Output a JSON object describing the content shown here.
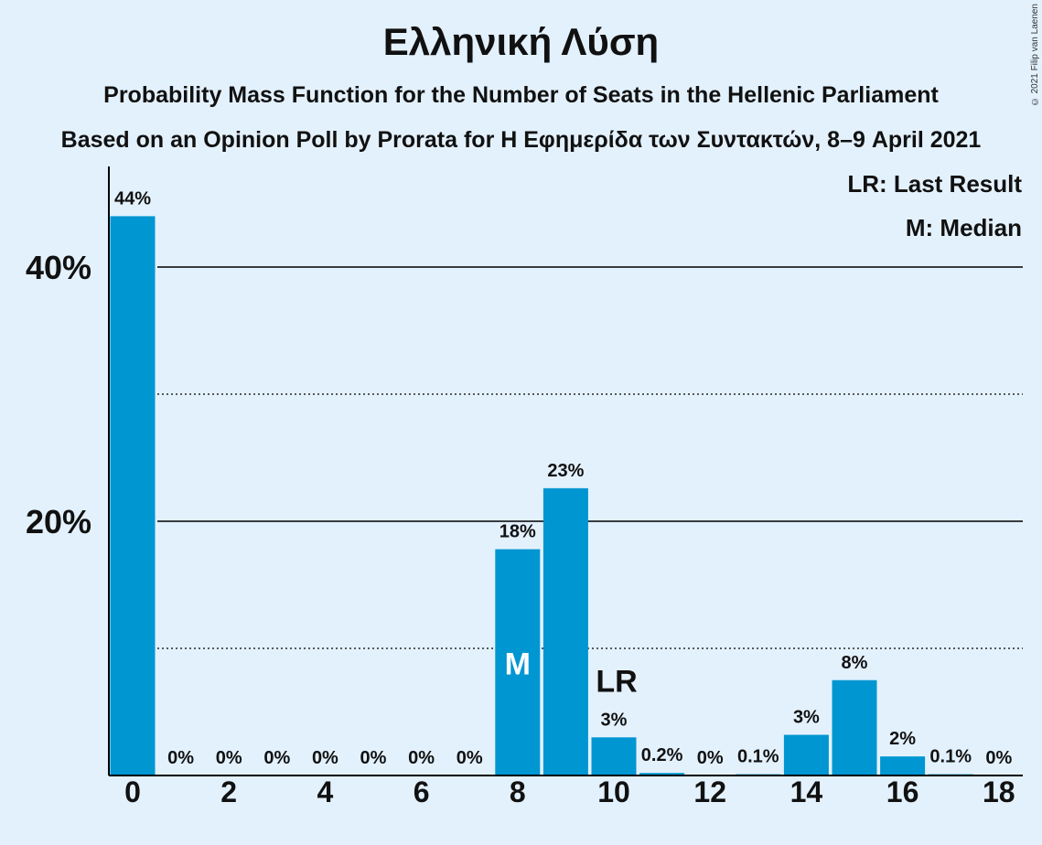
{
  "header": {
    "title": "Ελληνική Λύση",
    "subtitle1": "Probability Mass Function for the Number of Seats in the Hellenic Parliament",
    "subtitle2": "Based on an Opinion Poll by Prorata for Η Εφημερίδα των Συντακτών, 8–9 April 2021",
    "copyright": "© 2021 Filip van Laenen"
  },
  "legend": {
    "last_result": "LR: Last Result",
    "median": "M: Median"
  },
  "colors": {
    "background": "#e3f1fd",
    "bar": "#0096d2"
  },
  "chart_data": {
    "type": "bar",
    "x": [
      0,
      1,
      2,
      3,
      4,
      5,
      6,
      7,
      8,
      9,
      10,
      11,
      12,
      13,
      14,
      15,
      16,
      17,
      18
    ],
    "values": [
      44,
      0,
      0,
      0,
      0,
      0,
      0,
      0,
      17.8,
      22.6,
      3,
      0.2,
      0,
      0.1,
      3.2,
      7.5,
      1.5,
      0.1,
      0
    ],
    "value_labels": [
      "44%",
      "0%",
      "0%",
      "0%",
      "0%",
      "0%",
      "0%",
      "0%",
      "18%",
      "23%",
      "3%",
      "0.2%",
      "0%",
      "0.1%",
      "3%",
      "8%",
      "2%",
      "0.1%",
      "0%"
    ],
    "x_ticks": [
      "0",
      "2",
      "4",
      "6",
      "8",
      "10",
      "12",
      "14",
      "16",
      "18"
    ],
    "y_ticks": [
      "20%",
      "40%"
    ],
    "ylim": [
      0,
      48
    ],
    "gridlines_solid": [
      20,
      40
    ],
    "gridlines_dotted": [
      10,
      30
    ],
    "median_seat": 8,
    "median_marker": "M",
    "last_result_seat": 10,
    "last_result_marker": "LR"
  }
}
